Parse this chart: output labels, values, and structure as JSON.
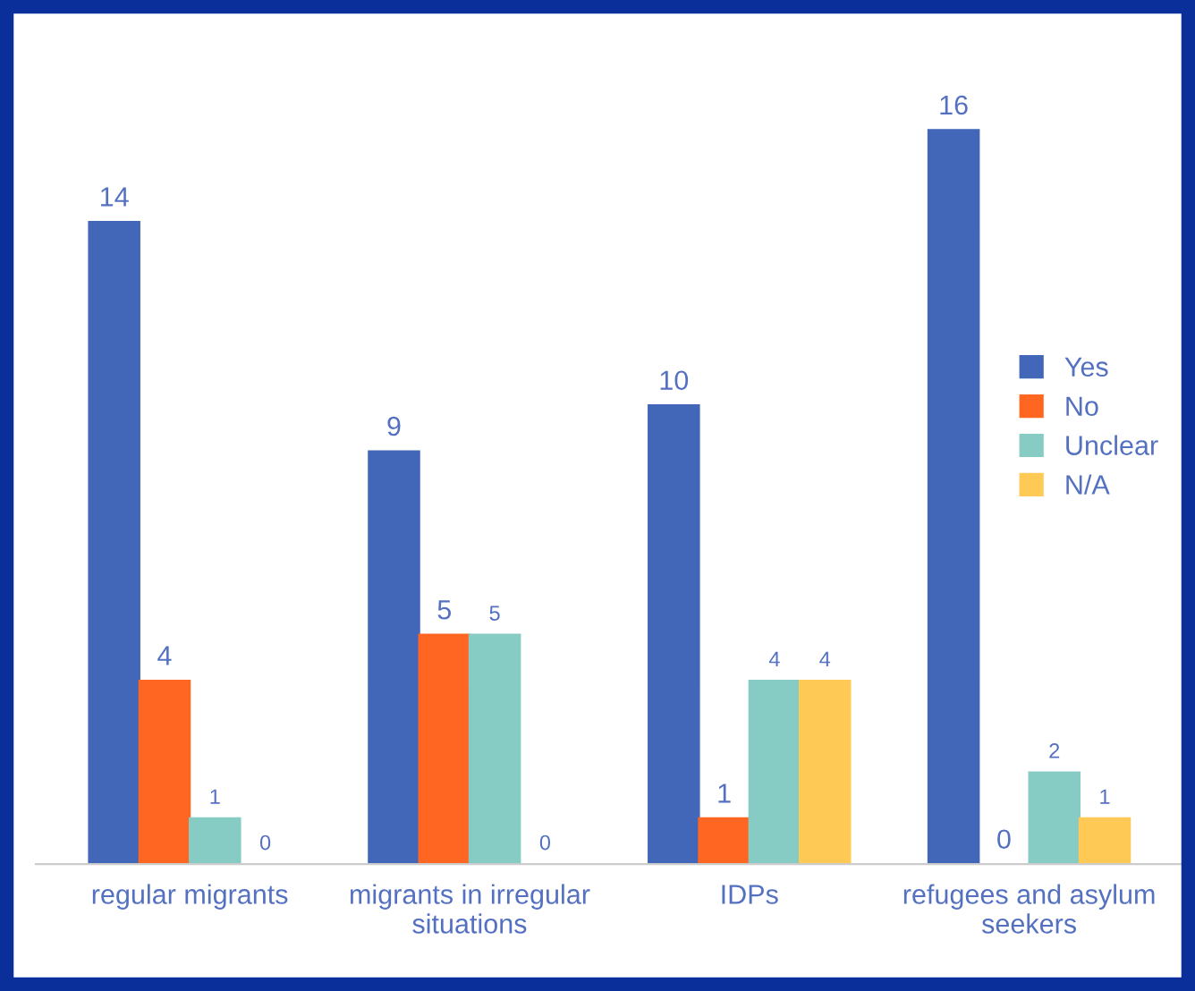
{
  "chart_data": {
    "type": "bar",
    "categories": [
      "regular migrants",
      "migrants in irregular situations",
      "IDPs",
      "refugees and asylum seekers"
    ],
    "series": [
      {
        "name": "Yes",
        "color": "#4267b8",
        "values": [
          14,
          9,
          10,
          16
        ]
      },
      {
        "name": "No",
        "color": "#ff6622",
        "values": [
          4,
          5,
          1,
          0
        ]
      },
      {
        "name": "Unclear",
        "color": "#86ccc4",
        "values": [
          1,
          5,
          4,
          2
        ]
      },
      {
        "name": "N/A",
        "color": "#ffc955",
        "values": [
          0,
          0,
          4,
          1
        ]
      }
    ],
    "data_labels": true,
    "legend": "right",
    "grid": false
  }
}
